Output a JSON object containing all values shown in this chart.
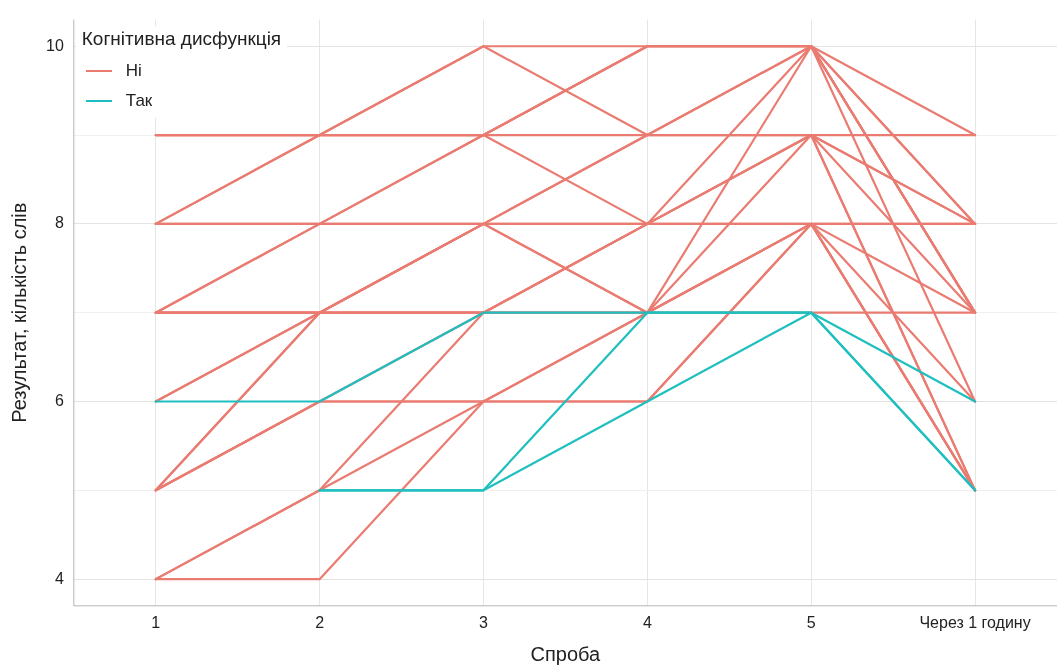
{
  "chart_data": {
    "type": "line",
    "xlabel": "Спроба",
    "ylabel": "Результат, кількість слів",
    "legend_title": "Когнітивна дисфункція",
    "legend": "top left",
    "grid": true,
    "marker": "none",
    "line_style": "solid",
    "categories": [
      "1",
      "2",
      "3",
      "4",
      "5",
      "Через 1 годину"
    ],
    "ylim": [
      3.7,
      10.3
    ],
    "yticks": [
      4,
      {
        "value": 5,
        "label": null
      },
      6,
      {
        "value": 7,
        "label": null
      },
      8,
      {
        "value": 9,
        "label": null
      },
      10
    ],
    "series": [
      {
        "name": "Ні",
        "color": "#ea7b71",
        "values": [
          9,
          9,
          10,
          10,
          10,
          9
        ]
      },
      {
        "color": "#ea7b71",
        "values": [
          8,
          9,
          9,
          10,
          10,
          8
        ]
      },
      {
        "color": "#ea7b71",
        "values": [
          8,
          8,
          9,
          9,
          9,
          8
        ]
      },
      {
        "color": "#ea7b71",
        "values": [
          7,
          8,
          8,
          9,
          10,
          7
        ]
      },
      {
        "color": "#ea7b71",
        "values": [
          7,
          7,
          8,
          8,
          8,
          8
        ]
      },
      {
        "color": "#ea7b71",
        "values": [
          6,
          7,
          7,
          8,
          9,
          7
        ]
      },
      {
        "color": "#ea7b71",
        "values": [
          5,
          7,
          8,
          7,
          7,
          7
        ]
      },
      {
        "color": "#ea7b71",
        "values": [
          5,
          6,
          7,
          7,
          8,
          5
        ]
      },
      {
        "color": "#ea7b71",
        "values": [
          4,
          5,
          6,
          7,
          9,
          5
        ]
      },
      {
        "color": "#ea7b71",
        "values": [
          4,
          4,
          6,
          6,
          8,
          6
        ]
      },
      {
        "color": "#ea7b71",
        "values": [
          9,
          9,
          9,
          8,
          8,
          8
        ]
      },
      {
        "color": "#ea7b71",
        "values": [
          8,
          8,
          8,
          9,
          10,
          7
        ]
      },
      {
        "color": "#ea7b71",
        "values": [
          7,
          7,
          7,
          8,
          10,
          6
        ]
      },
      {
        "color": "#ea7b71",
        "values": [
          5,
          6,
          6,
          6,
          8,
          5
        ]
      },
      {
        "color": "#ea7b71",
        "values": [
          5,
          7,
          7,
          7,
          10,
          7
        ]
      },
      {
        "color": "#ea7b71",
        "values": [
          8,
          9,
          10,
          9,
          9,
          9
        ]
      },
      {
        "color": "#ea7b71",
        "values": [
          7,
          8,
          9,
          10,
          10,
          8
        ]
      },
      {
        "color": "#ea7b71",
        "values": [
          6,
          7,
          8,
          8,
          9,
          5
        ]
      },
      {
        "color": "#ea7b71",
        "values": [
          5,
          6,
          6,
          7,
          8,
          5
        ]
      },
      {
        "color": "#ea7b71",
        "values": [
          4,
          5,
          7,
          8,
          9,
          8
        ]
      },
      {
        "color": "#ea7b71",
        "values": [
          9,
          9,
          9,
          10,
          10,
          7
        ]
      },
      {
        "color": "#ea7b71",
        "values": [
          7,
          7,
          8,
          7,
          8,
          7
        ]
      },
      {
        "name": "Так",
        "color": "#1fbfbf",
        "values": [
          6,
          6,
          7,
          7,
          7,
          5
        ]
      },
      {
        "color": "#1fbfbf",
        "values": [
          null,
          5,
          5,
          7,
          7,
          6
        ]
      },
      {
        "color": "#1fbfbf",
        "values": [
          null,
          5,
          5,
          6,
          7,
          5
        ]
      }
    ]
  }
}
